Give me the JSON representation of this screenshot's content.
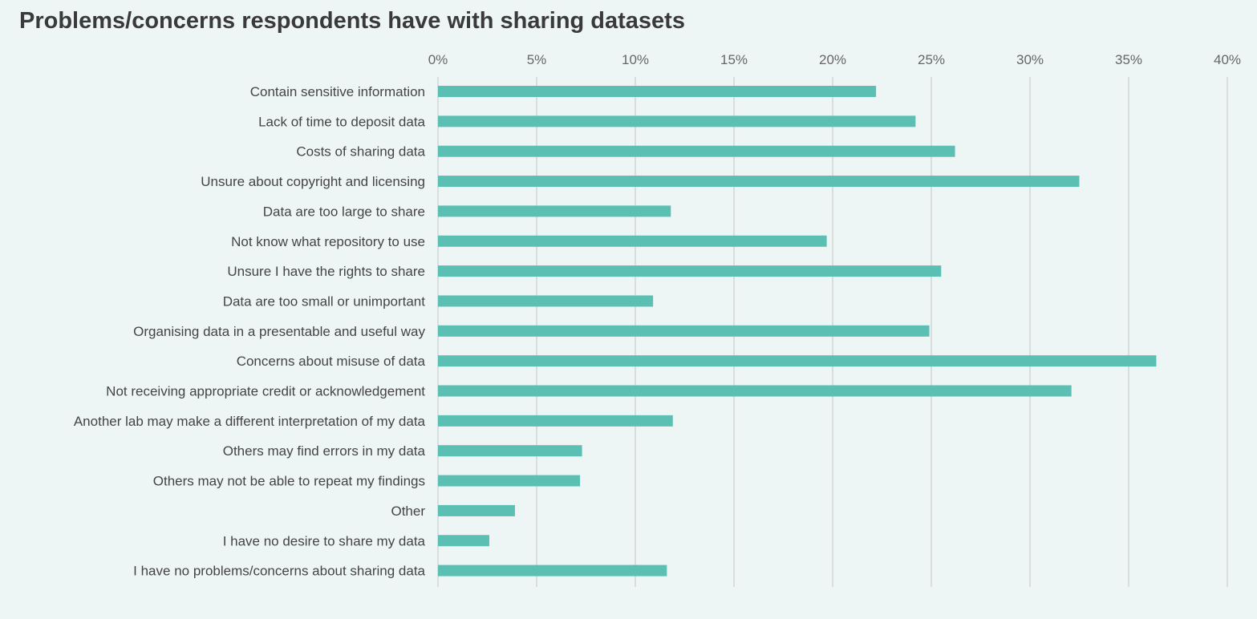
{
  "chart_data": {
    "type": "bar",
    "orientation": "horizontal",
    "title": "Problems/concerns respondents have with sharing datasets",
    "xlabel": "",
    "ylabel": "",
    "xlim": [
      0,
      40
    ],
    "x_ticks": [
      "0%",
      "5%",
      "10%",
      "15%",
      "20%",
      "25%",
      "30%",
      "35%",
      "40%"
    ],
    "x_tick_values": [
      0,
      5,
      10,
      15,
      20,
      25,
      30,
      35,
      40
    ],
    "x_axis_position": "top",
    "grid": true,
    "legend": "none",
    "bar_color": "#5bbfb3",
    "categories": [
      "Contain sensitive information",
      "Lack of time to deposit data",
      "Costs of sharing data",
      "Unsure about copyright and licensing",
      "Data are too large to share",
      "Not know what repository to use",
      "Unsure I have the rights to share",
      "Data are too small or unimportant",
      "Organising data in a presentable and useful way",
      "Concerns about misuse of data",
      "Not receiving appropriate credit or acknowledgement",
      "Another lab may make a different interpretation of my data",
      "Others may find errors in my data",
      "Others may not be able to repeat my findings",
      "Other",
      "I have no desire to share my data",
      "I have no problems/concerns about sharing data"
    ],
    "values": [
      22.2,
      24.2,
      26.2,
      32.5,
      11.8,
      19.7,
      25.5,
      10.9,
      24.9,
      36.4,
      32.1,
      11.9,
      7.3,
      7.2,
      3.9,
      2.6,
      11.6
    ]
  }
}
